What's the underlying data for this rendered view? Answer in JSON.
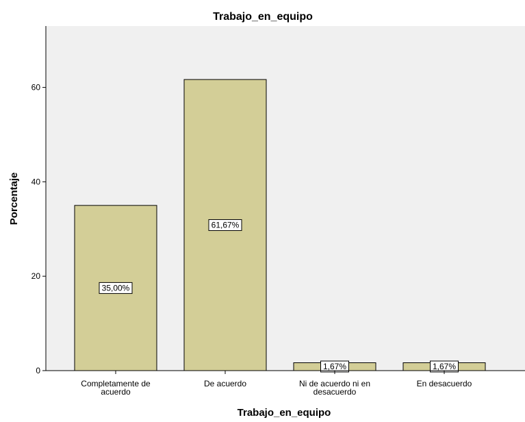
{
  "chart_data": {
    "type": "bar",
    "title": "Trabajo_en_equipo",
    "xlabel": "Trabajo_en_equipo",
    "ylabel": "Porcentaje",
    "categories": [
      [
        "Completamente de",
        "acuerdo"
      ],
      [
        "De acuerdo"
      ],
      [
        "Ni de acuerdo ni en",
        "desacuerdo"
      ],
      [
        "En desacuerdo"
      ]
    ],
    "values": [
      35.0,
      61.67,
      1.67,
      1.67
    ],
    "data_labels": [
      "35,00%",
      "61,67%",
      "1,67%",
      "1,67%"
    ],
    "yticks": [
      0,
      20,
      40,
      60
    ],
    "ylim": [
      0,
      73
    ],
    "grid": false,
    "colors": {
      "plot_background": "#f0f0f0",
      "bar_fill": "#d3ce97",
      "bar_stroke": "#000000"
    }
  }
}
